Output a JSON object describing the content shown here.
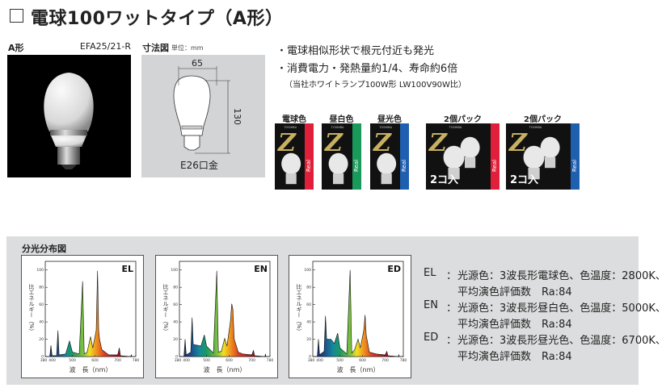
{
  "header": {
    "title": "電球100ワットタイプ（A形）"
  },
  "product": {
    "shape_label": "A形",
    "model": "EFA25/21-R"
  },
  "dimension": {
    "title": "寸法図",
    "unit": "単位：mm",
    "width": "65",
    "height": "130",
    "base": "E26口金"
  },
  "features": [
    "・電球相似形状で根元付近も発光",
    "・消費電力・発熱量約1/4、寿命約6倍",
    "（当社ホワイトランプ100W形 LW100V90W比）"
  ],
  "packages": [
    {
      "label": "電球色",
      "accent": "#e0203a",
      "count": 1,
      "brand": "TOSHIBA",
      "logo": "Z",
      "sub": "Real"
    },
    {
      "label": "昼白色",
      "accent": "#1a9a5a",
      "count": 1,
      "brand": "TOSHIBA",
      "logo": "Z",
      "sub": "Real"
    },
    {
      "label": "昼光色",
      "accent": "#1f5fb0",
      "count": 1,
      "brand": "TOSHIBA",
      "logo": "Z",
      "sub": "Real"
    },
    {
      "label": "2個パック",
      "accent": "#e0203a",
      "count": 2,
      "brand": "TOSHIBA",
      "logo": "Z",
      "sub": "Real",
      "pack_text": "2コ入"
    },
    {
      "label": "2個パック",
      "accent": "#1f5fb0",
      "count": 2,
      "brand": "TOSHIBA",
      "logo": "Z",
      "sub": "Real",
      "pack_text": "2コ入"
    }
  ],
  "spectrum": {
    "title": "分光分布図",
    "legend": [
      {
        "code": "EL",
        "sep": "：",
        "line1": "光源色：3波長形電球色、色温度：2800K、",
        "line2": "平均演色評価数　Ra:84"
      },
      {
        "code": "EN",
        "sep": "：",
        "line1": "光源色：3波長形昼白色、色温度：5000K、",
        "line2": "平均演色評価数　Ra:84"
      },
      {
        "code": "ED",
        "sep": "：",
        "line1": "光源色：3波長形昼光色、色温度：6700K、",
        "line2": "平均演色評価数　Ra:84"
      }
    ]
  },
  "chart_data": [
    {
      "type": "area",
      "title": "EL",
      "xlabel": "波　長（nm）",
      "ylabel": "比エネルギー（%）",
      "xlim": [
        380,
        780
      ],
      "ylim": [
        0,
        110
      ],
      "xticks": [
        380,
        400,
        500,
        600,
        700,
        780
      ],
      "yticks": [
        0,
        20,
        40,
        60,
        80,
        100
      ],
      "points": [
        [
          380,
          0
        ],
        [
          400,
          0
        ],
        [
          405,
          13
        ],
        [
          410,
          1
        ],
        [
          430,
          1
        ],
        [
          436,
          30
        ],
        [
          441,
          2
        ],
        [
          470,
          3
        ],
        [
          487,
          18
        ],
        [
          500,
          5
        ],
        [
          530,
          3
        ],
        [
          545,
          87
        ],
        [
          552,
          3
        ],
        [
          565,
          5
        ],
        [
          580,
          23
        ],
        [
          590,
          10
        ],
        [
          605,
          30
        ],
        [
          611,
          99
        ],
        [
          616,
          30
        ],
        [
          620,
          20
        ],
        [
          630,
          8
        ],
        [
          650,
          4
        ],
        [
          660,
          2
        ],
        [
          700,
          2
        ],
        [
          707,
          10
        ],
        [
          712,
          1
        ],
        [
          758,
          0
        ],
        [
          760,
          2
        ],
        [
          762,
          0
        ],
        [
          780,
          0
        ]
      ]
    },
    {
      "type": "area",
      "title": "EN",
      "xlabel": "波　長（nm）",
      "ylabel": "比エネルギー（%）",
      "xlim": [
        380,
        780
      ],
      "ylim": [
        0,
        110
      ],
      "xticks": [
        380,
        400,
        500,
        600,
        700,
        780
      ],
      "yticks": [
        0,
        20,
        40,
        60,
        80,
        100
      ],
      "points": [
        [
          380,
          0
        ],
        [
          400,
          0
        ],
        [
          405,
          20
        ],
        [
          410,
          2
        ],
        [
          430,
          5
        ],
        [
          436,
          45
        ],
        [
          441,
          14
        ],
        [
          460,
          13
        ],
        [
          475,
          12
        ],
        [
          490,
          25
        ],
        [
          500,
          12
        ],
        [
          530,
          4
        ],
        [
          545,
          99
        ],
        [
          552,
          5
        ],
        [
          565,
          6
        ],
        [
          580,
          21
        ],
        [
          590,
          12
        ],
        [
          605,
          40
        ],
        [
          611,
          61
        ],
        [
          616,
          55
        ],
        [
          622,
          20
        ],
        [
          640,
          5
        ],
        [
          660,
          3
        ],
        [
          700,
          2
        ],
        [
          707,
          7
        ],
        [
          712,
          1
        ],
        [
          758,
          0
        ],
        [
          760,
          3
        ],
        [
          762,
          0
        ],
        [
          780,
          0
        ]
      ]
    },
    {
      "type": "area",
      "title": "ED",
      "xlabel": "波　長（nm）",
      "ylabel": "比エネルギー（%）",
      "xlim": [
        380,
        780
      ],
      "ylim": [
        0,
        110
      ],
      "xticks": [
        380,
        400,
        500,
        600,
        700,
        780
      ],
      "yticks": [
        0,
        20,
        40,
        60,
        80,
        100
      ],
      "points": [
        [
          380,
          0
        ],
        [
          400,
          0
        ],
        [
          405,
          20
        ],
        [
          410,
          2
        ],
        [
          430,
          6
        ],
        [
          436,
          47
        ],
        [
          441,
          20
        ],
        [
          460,
          20
        ],
        [
          475,
          15
        ],
        [
          490,
          27
        ],
        [
          500,
          10
        ],
        [
          530,
          3
        ],
        [
          545,
          100
        ],
        [
          552,
          4
        ],
        [
          565,
          8
        ],
        [
          580,
          20
        ],
        [
          590,
          10
        ],
        [
          605,
          30
        ],
        [
          611,
          48
        ],
        [
          616,
          25
        ],
        [
          630,
          5
        ],
        [
          660,
          3
        ],
        [
          700,
          2
        ],
        [
          707,
          6
        ],
        [
          712,
          1
        ],
        [
          758,
          0
        ],
        [
          760,
          2
        ],
        [
          762,
          0
        ],
        [
          780,
          0
        ]
      ]
    }
  ]
}
